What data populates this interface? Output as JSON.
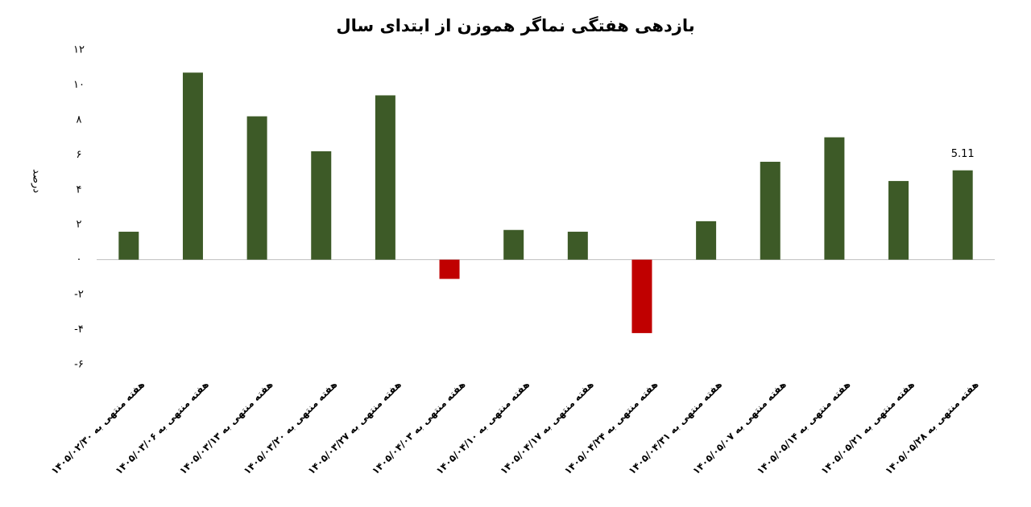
{
  "chart_data": {
    "type": "bar",
    "title": "بازدهی هفتگی نماگر هموزن از ابتدای سال",
    "y_label": "درصد",
    "categories": [
      "هفته منتهی به ۱۴۰۵/۰۲/۳۰",
      "هفته منتهی به ۱۴۰۵/۰۳/۰۶",
      "هفته منتهی به ۱۴۰۵/۰۳/۱۳",
      "هفته منتهی به ۱۴۰۵/۰۳/۲۰",
      "هفته منتهی به ۱۴۰۵/۰۳/۲۷",
      "هفته منتهی به ۱۴۰۵/۰۴/۰۳",
      "هفته منتهی به ۱۴۰۵/۰۴/۱۰",
      "هفته منتهی به ۱۴۰۵/۰۴/۱۷",
      "هفته منتهی به ۱۴۰۵/۰۴/۲۴",
      "هفته منتهی به ۱۴۰۵/۰۴/۳۱",
      "هفته منتهی به ۱۴۰۵/۰۵/۰۷",
      "هفته منتهی به ۱۴۰۵/۰۵/۱۴",
      "هفته منتهی به ۱۴۰۵/۰۵/۲۱",
      "هفته منتهی به ۱۴۰۵/۰۵/۲۸"
    ],
    "values": [
      1.6,
      10.7,
      8.2,
      6.2,
      9.4,
      -1.1,
      1.7,
      1.6,
      -4.2,
      2.2,
      5.6,
      7.0,
      4.5,
      5.11
    ],
    "value_labels": [
      null,
      null,
      null,
      null,
      null,
      null,
      null,
      null,
      null,
      null,
      null,
      null,
      null,
      "5.11"
    ],
    "color": "#3d5a27",
    "negative_color": "#c00000",
    "ylim": [
      -6,
      12
    ],
    "yticks": [
      {
        "value": -6,
        "label": "-۶"
      },
      {
        "value": -4,
        "label": "-۴"
      },
      {
        "value": -2,
        "label": "-۲"
      },
      {
        "value": 0,
        "label": "۰"
      },
      {
        "value": 2,
        "label": "۲"
      },
      {
        "value": 4,
        "label": "۴"
      },
      {
        "value": 6,
        "label": "۶"
      },
      {
        "value": 8,
        "label": "۸"
      },
      {
        "value": 10,
        "label": "۱۰"
      },
      {
        "value": 12,
        "label": "۱۲"
      }
    ],
    "grid": false
  }
}
